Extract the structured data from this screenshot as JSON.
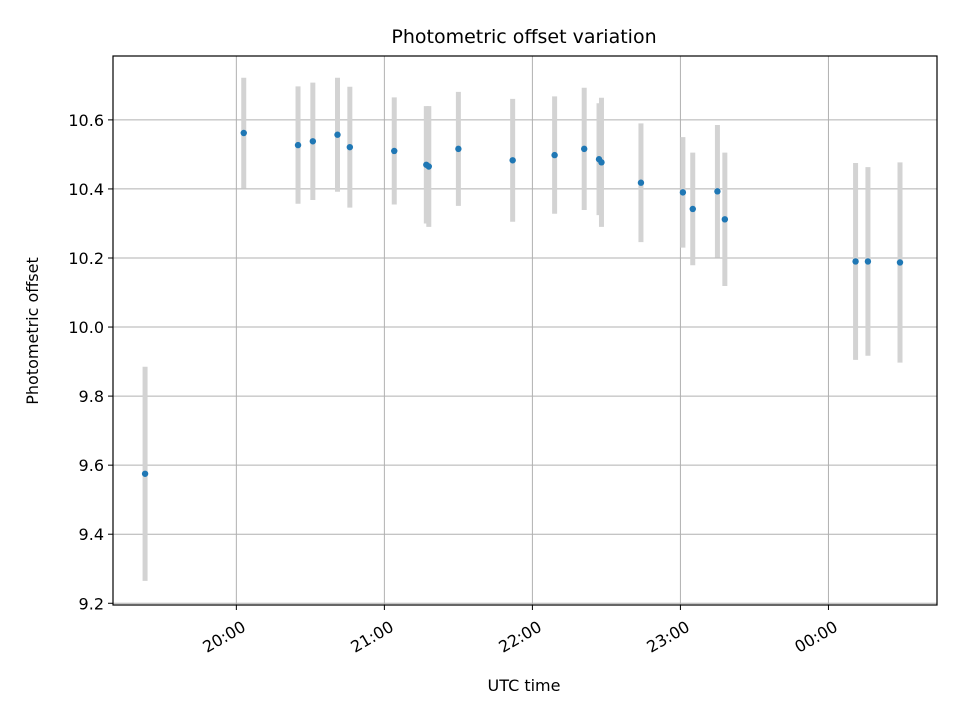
{
  "chart_data": {
    "type": "scatter",
    "title": "Photometric offset variation",
    "xlabel": "UTC time",
    "ylabel": "Photometric offset",
    "xlim": [
      "19:10",
      "00:44"
    ],
    "ylim": [
      9.195,
      10.785
    ],
    "grid": true,
    "x_ticks": [
      "20:00",
      "21:00",
      "22:00",
      "23:00",
      "00:00"
    ],
    "y_ticks": [
      "9.2",
      "9.4",
      "9.6",
      "9.8",
      "10.0",
      "10.2",
      "10.4",
      "10.6"
    ],
    "colors": {
      "point": "#1f77b4",
      "errorbar": "#d3d3d3",
      "grid": "#b0b0b0"
    },
    "series": [
      {
        "points": [
          {
            "x": "19:23",
            "y": 9.575,
            "err": 0.31
          },
          {
            "x": "20:03",
            "y": 10.562,
            "err": 0.16
          },
          {
            "x": "20:25",
            "y": 10.527,
            "err": 0.17
          },
          {
            "x": "20:31",
            "y": 10.538,
            "err": 0.17
          },
          {
            "x": "20:41",
            "y": 10.557,
            "err": 0.165
          },
          {
            "x": "20:46",
            "y": 10.521,
            "err": 0.175
          },
          {
            "x": "21:04",
            "y": 10.51,
            "err": 0.155
          },
          {
            "x": "21:17",
            "y": 10.47,
            "err": 0.17
          },
          {
            "x": "21:18",
            "y": 10.465,
            "err": 0.175
          },
          {
            "x": "21:30",
            "y": 10.516,
            "err": 0.165
          },
          {
            "x": "21:52",
            "y": 10.483,
            "err": 0.178
          },
          {
            "x": "22:09",
            "y": 10.498,
            "err": 0.17
          },
          {
            "x": "22:21",
            "y": 10.516,
            "err": 0.177
          },
          {
            "x": "22:27",
            "y": 10.486,
            "err": 0.162
          },
          {
            "x": "22:28",
            "y": 10.477,
            "err": 0.187
          },
          {
            "x": "22:44",
            "y": 10.418,
            "err": 0.172
          },
          {
            "x": "23:01",
            "y": 10.39,
            "err": 0.16
          },
          {
            "x": "23:05",
            "y": 10.342,
            "err": 0.163
          },
          {
            "x": "23:15",
            "y": 10.393,
            "err": 0.192
          },
          {
            "x": "23:18",
            "y": 10.312,
            "err": 0.193
          },
          {
            "x": "00:11",
            "y": 10.19,
            "err": 0.285
          },
          {
            "x": "00:16",
            "y": 10.19,
            "err": 0.273
          },
          {
            "x": "00:29",
            "y": 10.187,
            "err": 0.29
          }
        ]
      }
    ]
  }
}
